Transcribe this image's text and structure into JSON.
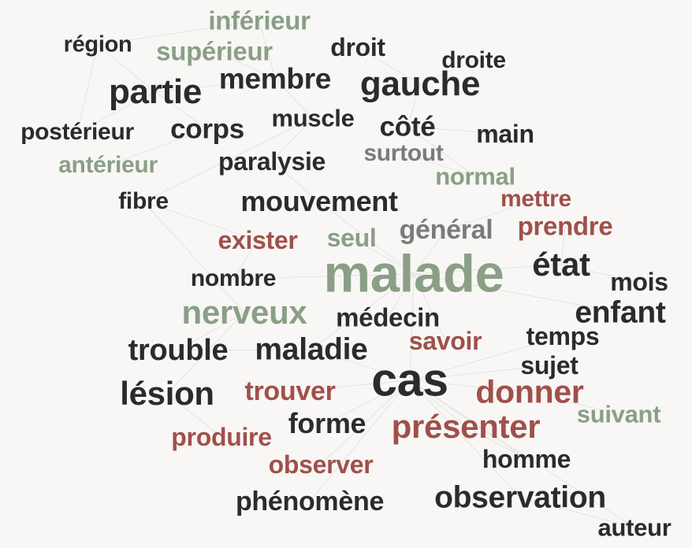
{
  "words": [
    {
      "text": "inférieur",
      "color": "#8a9f86"
    },
    {
      "text": "région",
      "color": "#2b2b2b"
    },
    {
      "text": "supérieur",
      "color": "#8a9f86"
    },
    {
      "text": "droit",
      "color": "#2b2b2b"
    },
    {
      "text": "droite",
      "color": "#2b2b2b"
    },
    {
      "text": "membre",
      "color": "#2b2b2b"
    },
    {
      "text": "gauche",
      "color": "#2b2b2b"
    },
    {
      "text": "partie",
      "color": "#2b2b2b"
    },
    {
      "text": "muscle",
      "color": "#2b2b2b"
    },
    {
      "text": "côté",
      "color": "#2b2b2b"
    },
    {
      "text": "postérieur",
      "color": "#2b2b2b"
    },
    {
      "text": "corps",
      "color": "#2b2b2b"
    },
    {
      "text": "main",
      "color": "#2b2b2b"
    },
    {
      "text": "surtout",
      "color": "#7b7b7b"
    },
    {
      "text": "paralysie",
      "color": "#2b2b2b"
    },
    {
      "text": "antérieur",
      "color": "#8a9f86"
    },
    {
      "text": "normal",
      "color": "#8a9f86"
    },
    {
      "text": "fibre",
      "color": "#2b2b2b"
    },
    {
      "text": "mouvement",
      "color": "#2b2b2b"
    },
    {
      "text": "mettre",
      "color": "#a0504a"
    },
    {
      "text": "prendre",
      "color": "#a0504a"
    },
    {
      "text": "général",
      "color": "#7b7b7b"
    },
    {
      "text": "exister",
      "color": "#a0504a"
    },
    {
      "text": "seul",
      "color": "#8a9f86"
    },
    {
      "text": "malade",
      "color": "#8a9f86"
    },
    {
      "text": "état",
      "color": "#2b2b2b"
    },
    {
      "text": "nombre",
      "color": "#2b2b2b"
    },
    {
      "text": "mois",
      "color": "#2b2b2b"
    },
    {
      "text": "nerveux",
      "color": "#8a9f86"
    },
    {
      "text": "enfant",
      "color": "#2b2b2b"
    },
    {
      "text": "médecin",
      "color": "#2b2b2b"
    },
    {
      "text": "temps",
      "color": "#2b2b2b"
    },
    {
      "text": "savoir",
      "color": "#a0504a"
    },
    {
      "text": "trouble",
      "color": "#2b2b2b"
    },
    {
      "text": "maladie",
      "color": "#2b2b2b"
    },
    {
      "text": "sujet",
      "color": "#2b2b2b"
    },
    {
      "text": "cas",
      "color": "#2b2b2b"
    },
    {
      "text": "lésion",
      "color": "#2b2b2b"
    },
    {
      "text": "trouver",
      "color": "#a0504a"
    },
    {
      "text": "donner",
      "color": "#a0504a"
    },
    {
      "text": "suivant",
      "color": "#8a9f86"
    },
    {
      "text": "forme",
      "color": "#2b2b2b"
    },
    {
      "text": "présenter",
      "color": "#a0504a"
    },
    {
      "text": "produire",
      "color": "#a0504a"
    },
    {
      "text": "homme",
      "color": "#2b2b2b"
    },
    {
      "text": "observer",
      "color": "#a0504a"
    },
    {
      "text": "observation",
      "color": "#2b2b2b"
    },
    {
      "text": "phénomène",
      "color": "#2b2b2b"
    },
    {
      "text": "auteur",
      "color": "#2b2b2b"
    }
  ]
}
